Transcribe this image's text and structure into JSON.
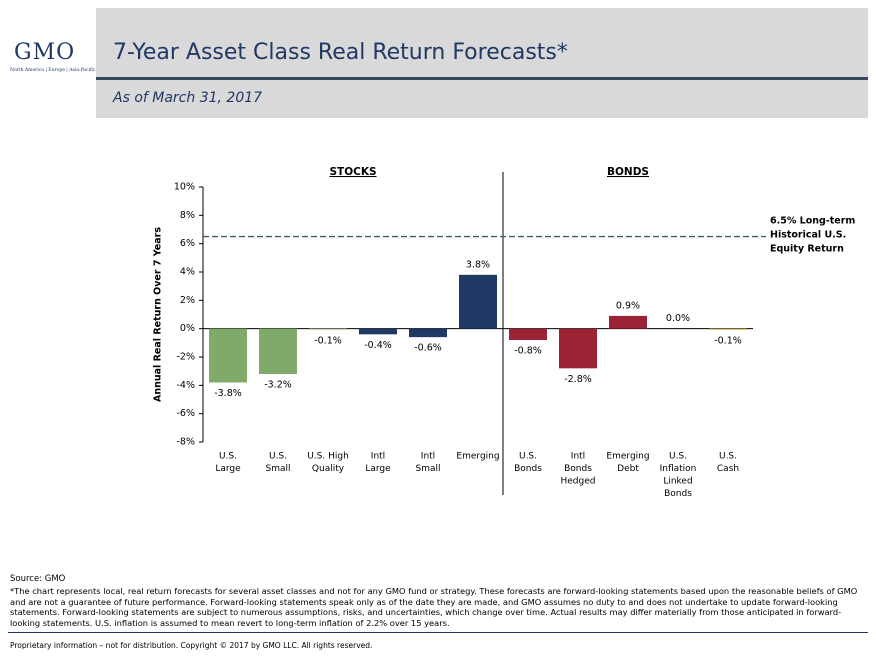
{
  "header": {
    "logo": "GMO",
    "logo_tagline": "North America | Europe | Asia-Pacific",
    "title": "7-Year Asset Class Real Return Forecasts*",
    "subtitle": "As of March 31, 2017"
  },
  "chart_data": {
    "type": "bar",
    "sections": [
      "STOCKS",
      "BONDS"
    ],
    "y_label": "Annual Real Return Over 7 Years",
    "categories": [
      [
        "U.S.",
        "Large"
      ],
      [
        "U.S.",
        "Small"
      ],
      [
        "U.S. High",
        "Quality"
      ],
      [
        "Intl",
        "Large"
      ],
      [
        "Intl",
        "Small"
      ],
      [
        "Emerging"
      ],
      [
        "U.S.",
        "Bonds"
      ],
      [
        "Intl",
        "Bonds",
        "Hedged"
      ],
      [
        "Emerging",
        "Debt"
      ],
      [
        "U.S.",
        "Inflation",
        "Linked",
        "Bonds"
      ],
      [
        "U.S.",
        "Cash"
      ]
    ],
    "values": [
      -3.8,
      -3.2,
      -0.1,
      -0.4,
      -0.6,
      3.8,
      -0.8,
      -2.8,
      0.9,
      0.0,
      -0.1
    ],
    "value_labels": [
      "-3.8%",
      "-3.2%",
      "-0.1%",
      "-0.4%",
      "-0.6%",
      "3.8%",
      "-0.8%",
      "-2.8%",
      "0.9%",
      "0.0%",
      "-0.1%"
    ],
    "colors": [
      "#7faa6a",
      "#7faa6a",
      "#c9d9b8",
      "#1f3864",
      "#1f3864",
      "#1f3864",
      "#9b2335",
      "#9b2335",
      "#9b2335",
      "#9b2335",
      "#e0c878"
    ],
    "ylim": [
      -8,
      10
    ],
    "yticks": [
      {
        "value": -8,
        "label": "-8%"
      },
      {
        "value": -6,
        "label": "-6%"
      },
      {
        "value": -4,
        "label": "-4%"
      },
      {
        "value": -2,
        "label": "-2%"
      },
      {
        "value": 0,
        "label": "0%"
      },
      {
        "value": 2,
        "label": "2%"
      },
      {
        "value": 4,
        "label": "4%"
      },
      {
        "value": 6,
        "label": "6%"
      },
      {
        "value": 8,
        "label": "8%"
      },
      {
        "value": 10,
        "label": "10%"
      }
    ],
    "grid": false,
    "reference_line": {
      "value": 6.5,
      "color": "#3d5a73",
      "label": [
        "6.5% Long-term",
        "Historical U.S.",
        "Equity Return"
      ]
    }
  },
  "footer": {
    "source": "Source: GMO",
    "note": "*The chart represents local, real return forecasts for several asset classes and not for any GMO fund or strategy.  These forecasts are forward-looking statements based upon the reasonable beliefs of GMO and are not a guarantee of future performance.  Forward-looking statements speak only as of the date they are made, and GMO assumes no duty to and does not undertake to update forward-looking statements.  Forward-looking statements are subject to numerous assumptions, risks, and uncertainties, which change over time.  Actual results may differ materially from those anticipated in forward-looking statements. U.S. inflation is assumed to mean revert to long-term inflation of 2.2% over 15 years.",
    "copyright": "Proprietary information – not for distribution.  Copyright © 2017 by GMO LLC.  All rights reserved."
  }
}
